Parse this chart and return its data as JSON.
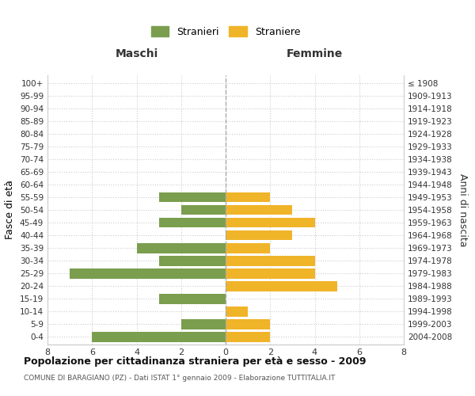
{
  "age_groups": [
    "0-4",
    "5-9",
    "10-14",
    "15-19",
    "20-24",
    "25-29",
    "30-34",
    "35-39",
    "40-44",
    "45-49",
    "50-54",
    "55-59",
    "60-64",
    "65-69",
    "70-74",
    "75-79",
    "80-84",
    "85-89",
    "90-94",
    "95-99",
    "100+"
  ],
  "birth_years": [
    "2004-2008",
    "1999-2003",
    "1994-1998",
    "1989-1993",
    "1984-1988",
    "1979-1983",
    "1974-1978",
    "1969-1973",
    "1964-1968",
    "1959-1963",
    "1954-1958",
    "1949-1953",
    "1944-1948",
    "1939-1943",
    "1934-1938",
    "1929-1933",
    "1924-1928",
    "1919-1923",
    "1914-1918",
    "1909-1913",
    "≤ 1908"
  ],
  "maschi": [
    6,
    2,
    0,
    3,
    0,
    7,
    3,
    4,
    0,
    3,
    2,
    3,
    0,
    0,
    0,
    0,
    0,
    0,
    0,
    0,
    0
  ],
  "femmine": [
    2,
    2,
    1,
    0,
    5,
    4,
    4,
    2,
    3,
    4,
    3,
    2,
    0,
    0,
    0,
    0,
    0,
    0,
    0,
    0,
    0
  ],
  "maschi_color": "#7a9e4e",
  "femmine_color": "#f0b429",
  "title": "Popolazione per cittadinanza straniera per età e sesso - 2009",
  "subtitle": "COMUNE DI BARAGIANO (PZ) - Dati ISTAT 1° gennaio 2009 - Elaborazione TUTTITALIA.IT",
  "ylabel_left": "Fasce di età",
  "ylabel_right": "Anni di nascita",
  "xlabel_left": "Maschi",
  "xlabel_right": "Femmine",
  "legend_maschi": "Stranieri",
  "legend_femmine": "Straniere",
  "xlim": 8,
  "background_color": "#ffffff",
  "grid_color": "#cccccc",
  "bar_height": 0.8
}
